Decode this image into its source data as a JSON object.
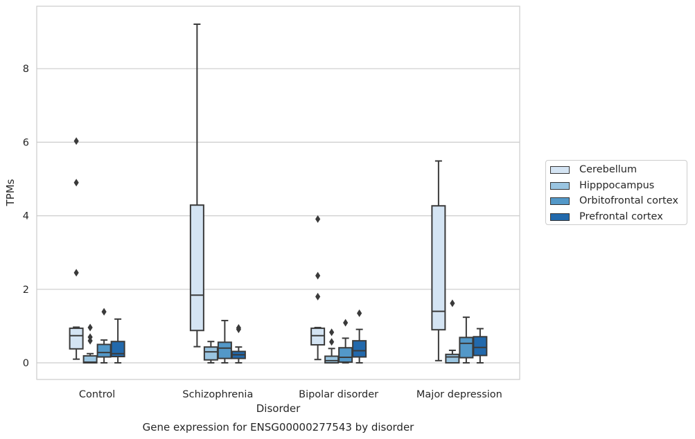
{
  "chart_data": {
    "type": "box",
    "title": "Gene expression for ENSG00000277543 by disorder",
    "xlabel": "Disorder",
    "ylabel": "TPMs",
    "ylim": [
      -0.45,
      9.6
    ],
    "yticks": [
      "0",
      "2",
      "4",
      "6",
      "8"
    ],
    "grid": "horizontal",
    "legend_position": "right",
    "categories": [
      "Control",
      "Schizophrenia",
      "Bipolar disorder",
      "Major depression"
    ],
    "series": [
      {
        "name": "Cerebellum",
        "color": "#d4e4f3",
        "boxes": [
          {
            "whislo": 0.1,
            "q1": 0.38,
            "med": 0.74,
            "q3": 0.94,
            "whishi": 0.97,
            "fliers": [
              2.45,
              4.9,
              6.03
            ]
          },
          {
            "whislo": 0.44,
            "q1": 0.88,
            "med": 1.84,
            "q3": 4.29,
            "whishi": 9.21,
            "fliers": []
          },
          {
            "whislo": 0.09,
            "q1": 0.49,
            "med": 0.74,
            "q3": 0.94,
            "whishi": 0.96,
            "fliers": [
              1.8,
              2.37,
              3.91
            ]
          },
          {
            "whislo": 0.06,
            "q1": 0.9,
            "med": 1.4,
            "q3": 4.27,
            "whishi": 5.49,
            "fliers": []
          }
        ]
      },
      {
        "name": "Hipppocampus",
        "color": "#9ac5e1",
        "boxes": [
          {
            "whislo": 0.0,
            "q1": 0.0,
            "med": 0.02,
            "q3": 0.19,
            "whishi": 0.25,
            "fliers": [
              0.6,
              0.7,
              0.96
            ]
          },
          {
            "whislo": 0.0,
            "q1": 0.08,
            "med": 0.3,
            "q3": 0.43,
            "whishi": 0.58,
            "fliers": []
          },
          {
            "whislo": 0.0,
            "q1": 0.0,
            "med": 0.06,
            "q3": 0.18,
            "whishi": 0.39,
            "fliers": [
              0.57,
              0.83
            ]
          },
          {
            "whislo": 0.0,
            "q1": 0.0,
            "med": 0.16,
            "q3": 0.23,
            "whishi": 0.34,
            "fliers": [
              1.62
            ]
          }
        ]
      },
      {
        "name": "Orbitofrontal cortex",
        "color": "#5398c8",
        "boxes": [
          {
            "whislo": 0.0,
            "q1": 0.16,
            "med": 0.28,
            "q3": 0.5,
            "whishi": 0.62,
            "fliers": [
              1.39
            ]
          },
          {
            "whislo": 0.0,
            "q1": 0.12,
            "med": 0.4,
            "q3": 0.56,
            "whishi": 1.15,
            "fliers": []
          },
          {
            "whislo": 0.0,
            "q1": 0.02,
            "med": 0.15,
            "q3": 0.41,
            "whishi": 0.67,
            "fliers": [
              1.09
            ]
          },
          {
            "whislo": 0.0,
            "q1": 0.14,
            "med": 0.53,
            "q3": 0.69,
            "whishi": 1.24,
            "fliers": []
          }
        ]
      },
      {
        "name": "Prefrontal cortex",
        "color": "#2269ac",
        "boxes": [
          {
            "whislo": 0.0,
            "q1": 0.17,
            "med": 0.25,
            "q3": 0.58,
            "whishi": 1.19,
            "fliers": []
          },
          {
            "whislo": 0.0,
            "q1": 0.12,
            "med": 0.22,
            "q3": 0.31,
            "whishi": 0.43,
            "fliers": [
              0.91,
              0.95
            ]
          },
          {
            "whislo": 0.0,
            "q1": 0.16,
            "med": 0.33,
            "q3": 0.6,
            "whishi": 0.91,
            "fliers": [
              1.35
            ]
          },
          {
            "whislo": 0.0,
            "q1": 0.2,
            "med": 0.42,
            "q3": 0.71,
            "whishi": 0.93,
            "fliers": []
          }
        ]
      }
    ]
  }
}
